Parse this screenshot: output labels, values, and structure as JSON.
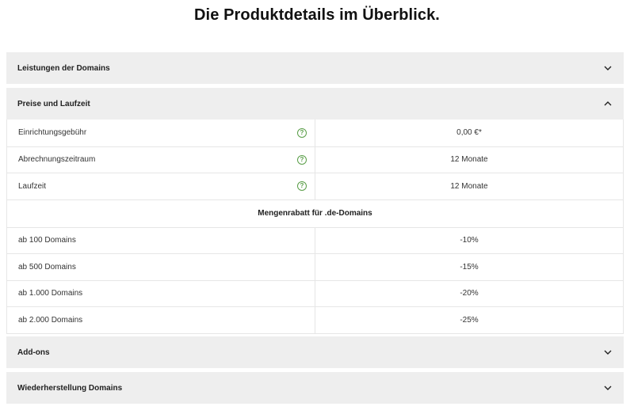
{
  "page_title": "Die Produktdetails im Überblick.",
  "accordion": {
    "performance": {
      "label": "Leistungen der Domains",
      "state": "collapsed",
      "icon": "chevron-down-icon"
    },
    "pricing": {
      "label": "Preise und Laufzeit",
      "state": "expanded",
      "icon": "chevron-up-icon"
    },
    "addons": {
      "label": "Add-ons",
      "state": "collapsed",
      "icon": "chevron-down-icon"
    },
    "restore": {
      "label": "Wiederherstellung Domains",
      "state": "collapsed",
      "icon": "chevron-down-icon"
    }
  },
  "pricing_table": {
    "rows": [
      {
        "label": "Einrichtungsgebühr",
        "value": "0,00 €*",
        "help_icon": "question-circle-icon"
      },
      {
        "label": "Abrechnungszeitraum",
        "value": "12 Monate",
        "help_icon": "question-circle-icon"
      },
      {
        "label": "Laufzeit",
        "value": "12 Monate",
        "help_icon": "question-circle-icon"
      }
    ],
    "help_glyph": "?",
    "volume_discount_heading": "Mengenrabatt für .de-Domains",
    "discounts": [
      {
        "label": "ab 100 Domains",
        "value": "-10%"
      },
      {
        "label": "ab 500 Domains",
        "value": "-15%"
      },
      {
        "label": "ab 1.000 Domains",
        "value": "-20%"
      },
      {
        "label": "ab 2.000 Domains",
        "value": "-25%"
      }
    ]
  },
  "colors": {
    "accordion_bg": "#eeeeee",
    "border": "#e6e6e6",
    "help_icon": "#5a9e48",
    "text": "#333333"
  }
}
